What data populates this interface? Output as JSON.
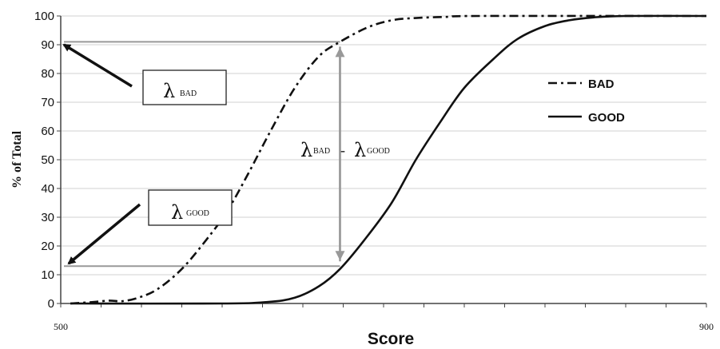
{
  "chart_data": {
    "type": "line",
    "title": "",
    "xlabel": "Score",
    "ylabel": "% of Total",
    "xlim": [
      500,
      900
    ],
    "ylim": [
      0,
      100
    ],
    "x_tick_labels": [
      "500",
      "900"
    ],
    "y_ticks": [
      0,
      10,
      20,
      30,
      40,
      50,
      60,
      70,
      80,
      90,
      100
    ],
    "grid": "horizontal",
    "legend_position": "right",
    "series": [
      {
        "name": "BAD",
        "style": "dash-dot",
        "color": "#111111",
        "points": [
          [
            506,
            0
          ],
          [
            520,
            0.5
          ],
          [
            530,
            1
          ],
          [
            538,
            0.8
          ],
          [
            548,
            2
          ],
          [
            560,
            5
          ],
          [
            575,
            12
          ],
          [
            590,
            22
          ],
          [
            603,
            32
          ],
          [
            616,
            45
          ],
          [
            630,
            60
          ],
          [
            645,
            75
          ],
          [
            660,
            86
          ],
          [
            673,
            91
          ],
          [
            690,
            96
          ],
          [
            705,
            98.5
          ],
          [
            720,
            99.3
          ],
          [
            740,
            99.7
          ],
          [
            760,
            100
          ],
          [
            900,
            100
          ]
        ]
      },
      {
        "name": "GOOD",
        "style": "solid",
        "color": "#111111",
        "points": [
          [
            506,
            0
          ],
          [
            600,
            0
          ],
          [
            628,
            0.5
          ],
          [
            645,
            2
          ],
          [
            660,
            6
          ],
          [
            673,
            12
          ],
          [
            688,
            22
          ],
          [
            705,
            35
          ],
          [
            720,
            50
          ],
          [
            735,
            63
          ],
          [
            750,
            75
          ],
          [
            768,
            85
          ],
          [
            783,
            92
          ],
          [
            800,
            96.5
          ],
          [
            815,
            98.5
          ],
          [
            830,
            99.5
          ],
          [
            850,
            100
          ],
          [
            900,
            100
          ]
        ]
      }
    ],
    "annotations": [
      {
        "text": "λ",
        "subscript": "BAD"
      },
      {
        "text": "λ",
        "subscript": "GOOD"
      },
      {
        "text": "λ",
        "subscript": "BAD",
        "operator": "-",
        "text2": "λ",
        "subscript2": "GOOD"
      }
    ],
    "reference_levels": {
      "bad_at_cut": 91,
      "good_at_cut": 13,
      "cut_score": 673
    }
  }
}
